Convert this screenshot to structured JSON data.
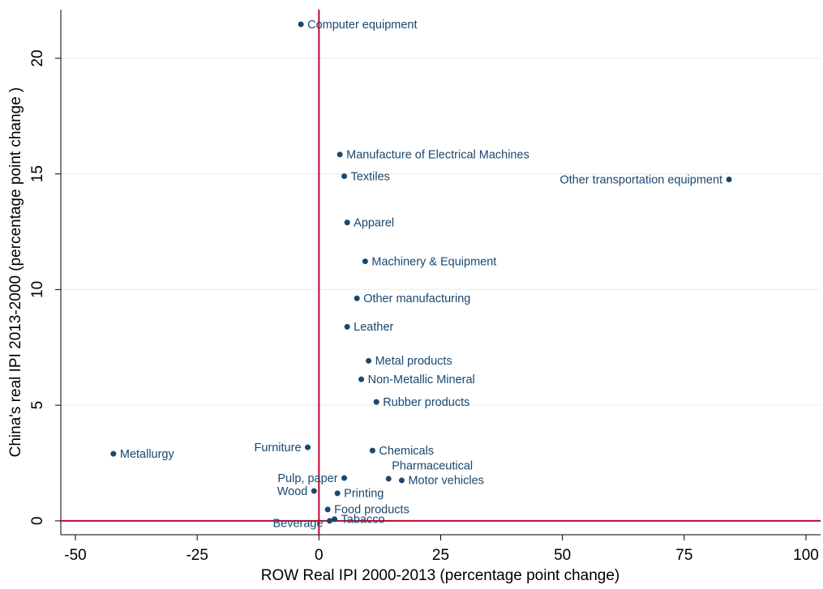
{
  "chart_data": {
    "type": "scatter",
    "xlabel": "ROW Real IPI 2000-2013 (percentage point change)",
    "ylabel": "China's real IPI 2013-2000 (percentage point change )",
    "labels": [
      "Computer equipment",
      "Manufacture of Electrical Machines",
      "Textiles",
      "Other transportation equipment",
      "Apparel",
      "Machinery & Equipment",
      "Other manufacturing",
      "Leather",
      "Metal products",
      "Non-Metallic Mineral",
      "Rubber products",
      "Metallurgy",
      "Furniture",
      "Chemicals",
      "Pharmaceutical",
      "Motor vehicles",
      "Pulp, paper",
      "Wood",
      "Printing",
      "Food products",
      "Beverage",
      "Tabacco"
    ],
    "x": [
      -3.7,
      4.3,
      5.2,
      84.2,
      5.8,
      9.5,
      7.8,
      5.8,
      10.2,
      8.7,
      11.8,
      -42.2,
      -2.3,
      11.0,
      14.3,
      17.0,
      5.2,
      -1.0,
      3.8,
      1.8,
      2.2,
      3.2
    ],
    "y": [
      21.47,
      15.84,
      14.9,
      14.76,
      12.9,
      11.22,
      9.62,
      8.39,
      6.92,
      6.12,
      5.14,
      2.9,
      3.18,
      3.04,
      1.82,
      1.75,
      1.85,
      1.29,
      1.19,
      0.49,
      0.0,
      0.07
    ],
    "color": "#1a476f",
    "xlim": [
      -53,
      103
    ],
    "ylim": [
      -0.6,
      22.1
    ],
    "xticks": [
      -50,
      -25,
      0,
      25,
      50,
      75,
      100
    ],
    "yticks": [
      0,
      5,
      10,
      15,
      20
    ],
    "grid": true,
    "xline": 0,
    "yline": 0,
    "line_color": "#c10534"
  }
}
